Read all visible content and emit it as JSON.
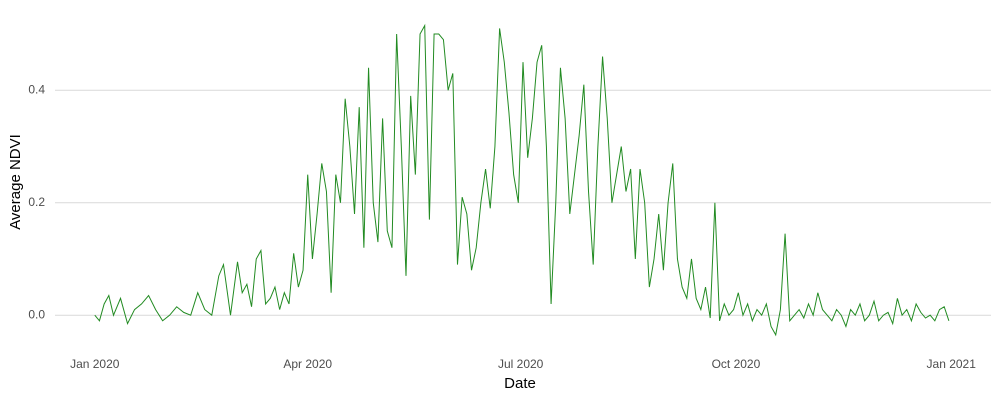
{
  "chart_data": {
    "type": "line",
    "xlabel": "Date",
    "ylabel": "Average NDVI",
    "color": "#228b22",
    "x": [
      0,
      2,
      4,
      6,
      8,
      11,
      14,
      17,
      20,
      23,
      26,
      29,
      32,
      35,
      38,
      41,
      44,
      47,
      50,
      53,
      55,
      58,
      61,
      63,
      65,
      67,
      69,
      71,
      73,
      75,
      77,
      79,
      81,
      83,
      85,
      87,
      89,
      91,
      93,
      95,
      97,
      99,
      101,
      103,
      105,
      107,
      109,
      111,
      113,
      115,
      117,
      119,
      121,
      123,
      125,
      127,
      129,
      131,
      133,
      135,
      137,
      139,
      141,
      143,
      145,
      147,
      149,
      151,
      153,
      155,
      157,
      159,
      161,
      163,
      165,
      167,
      169,
      171,
      173,
      175,
      177,
      179,
      181,
      183,
      185,
      187,
      189,
      191,
      193,
      195,
      197,
      199,
      201,
      203,
      205,
      207,
      209,
      211,
      213,
      215,
      217,
      219,
      221,
      223,
      225,
      227,
      229,
      231,
      233,
      235,
      237,
      239,
      241,
      243,
      245,
      247,
      249,
      251,
      253,
      255,
      257,
      259,
      261,
      263,
      265,
      267,
      269,
      271,
      273,
      275,
      277,
      279,
      281,
      283,
      285,
      287,
      289,
      291,
      293,
      295,
      297,
      299,
      301,
      303,
      305,
      307,
      309,
      311,
      313,
      315,
      317,
      319,
      321,
      323,
      325,
      327,
      329,
      331,
      333,
      335,
      337,
      339,
      341,
      343,
      345,
      347,
      349,
      351,
      353,
      355,
      357,
      359,
      361,
      363,
      365
    ],
    "values": [
      0.0,
      -0.01,
      0.02,
      0.035,
      0.0,
      0.03,
      -0.015,
      0.01,
      0.02,
      0.035,
      0.01,
      -0.01,
      0.0,
      0.015,
      0.005,
      0.0,
      0.04,
      0.01,
      0.0,
      0.07,
      0.09,
      0.0,
      0.095,
      0.04,
      0.055,
      0.015,
      0.1,
      0.115,
      0.02,
      0.03,
      0.05,
      0.01,
      0.04,
      0.02,
      0.11,
      0.05,
      0.08,
      0.25,
      0.1,
      0.18,
      0.27,
      0.22,
      0.04,
      0.25,
      0.2,
      0.385,
      0.3,
      0.18,
      0.37,
      0.12,
      0.44,
      0.2,
      0.13,
      0.35,
      0.15,
      0.12,
      0.5,
      0.3,
      0.07,
      0.39,
      0.25,
      0.5,
      0.515,
      0.17,
      0.5,
      0.5,
      0.49,
      0.4,
      0.43,
      0.09,
      0.21,
      0.18,
      0.08,
      0.12,
      0.2,
      0.26,
      0.19,
      0.3,
      0.51,
      0.45,
      0.36,
      0.25,
      0.2,
      0.45,
      0.28,
      0.35,
      0.45,
      0.48,
      0.3,
      0.02,
      0.2,
      0.44,
      0.35,
      0.18,
      0.25,
      0.32,
      0.41,
      0.22,
      0.09,
      0.3,
      0.46,
      0.35,
      0.2,
      0.25,
      0.3,
      0.22,
      0.26,
      0.1,
      0.26,
      0.2,
      0.05,
      0.1,
      0.18,
      0.08,
      0.2,
      0.27,
      0.1,
      0.05,
      0.03,
      0.1,
      0.03,
      0.01,
      0.05,
      -0.005,
      0.2,
      -0.01,
      0.02,
      0.0,
      0.01,
      0.04,
      0.0,
      0.02,
      -0.01,
      0.01,
      0.0,
      0.02,
      -0.02,
      -0.035,
      0.01,
      0.145,
      -0.01,
      0.0,
      0.01,
      -0.005,
      0.02,
      0.0,
      0.04,
      0.01,
      0.0,
      -0.01,
      0.01,
      0.0,
      -0.02,
      0.01,
      0.0,
      0.02,
      -0.01,
      0.0,
      0.025,
      -0.01,
      0.0,
      0.005,
      -0.015,
      0.03,
      0.0,
      0.01,
      -0.01,
      0.02,
      0.005,
      -0.005,
      0.0,
      -0.01,
      0.01,
      0.015,
      -0.01
    ],
    "xlim": [
      -17,
      383
    ],
    "xticks": [
      {
        "value": 0,
        "label": "Jan 2020"
      },
      {
        "value": 91,
        "label": "Apr 2020"
      },
      {
        "value": 182,
        "label": "Jul 2020"
      },
      {
        "value": 274,
        "label": "Oct 2020"
      },
      {
        "value": 366,
        "label": "Jan 2021"
      }
    ],
    "ylim": [
      -0.053,
      0.525
    ],
    "yticks": [
      {
        "value": 0,
        "label": "0.0"
      },
      {
        "value": 0.2,
        "label": "0.2"
      },
      {
        "value": 0.4,
        "label": "0.4"
      }
    ],
    "grid": true
  }
}
